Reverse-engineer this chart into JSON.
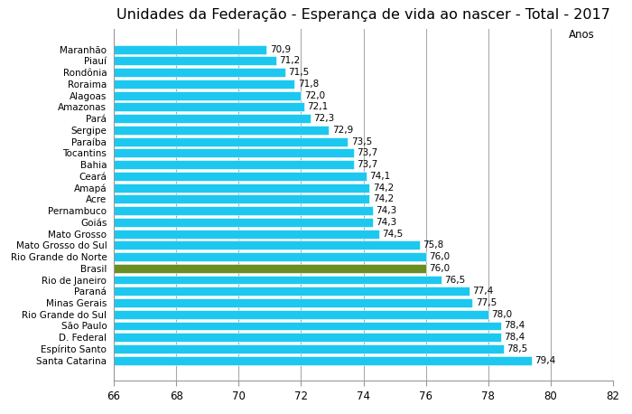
{
  "title": "Unidades da Federação - Esperança de vida ao nascer - Total - 2017",
  "xlabel": "Anos",
  "categories": [
    "Maranhão",
    "Piauí",
    "Rondônia",
    "Roraima",
    "Alagoas",
    "Amazonas",
    "Pará",
    "Sergipe",
    "Paraíba",
    "Tocantins",
    "Bahia",
    "Ceará",
    "Amapá",
    "Acre",
    "Pernambuco",
    "Goiás",
    "Mato Grosso",
    "Mato Grosso do Sul",
    "Rio Grande do Norte",
    "Brasil",
    "Rio de Janeiro",
    "Paraná",
    "Minas Gerais",
    "Rio Grande do Sul",
    "São Paulo",
    "D. Federal",
    "Espírito Santo",
    "Santa Catarina"
  ],
  "values": [
    70.9,
    71.2,
    71.5,
    71.8,
    72.0,
    72.1,
    72.3,
    72.9,
    73.5,
    73.7,
    73.7,
    74.1,
    74.2,
    74.2,
    74.3,
    74.3,
    74.5,
    75.8,
    76.0,
    76.0,
    76.5,
    77.4,
    77.5,
    78.0,
    78.4,
    78.4,
    78.5,
    79.4
  ],
  "bar_color_default": "#1CC8F0",
  "bar_color_brasil": "#6B8E23",
  "brasil_label": "Brasil",
  "xlim": [
    66,
    82
  ],
  "xticks": [
    66,
    68,
    70,
    72,
    74,
    76,
    78,
    80,
    82
  ],
  "title_fontsize": 11.5,
  "label_fontsize": 7.5,
  "value_fontsize": 7.5,
  "axis_fontsize": 8.5,
  "background_color": "#FFFFFF",
  "grid_color": "#AAAAAA",
  "bar_height": 0.78
}
